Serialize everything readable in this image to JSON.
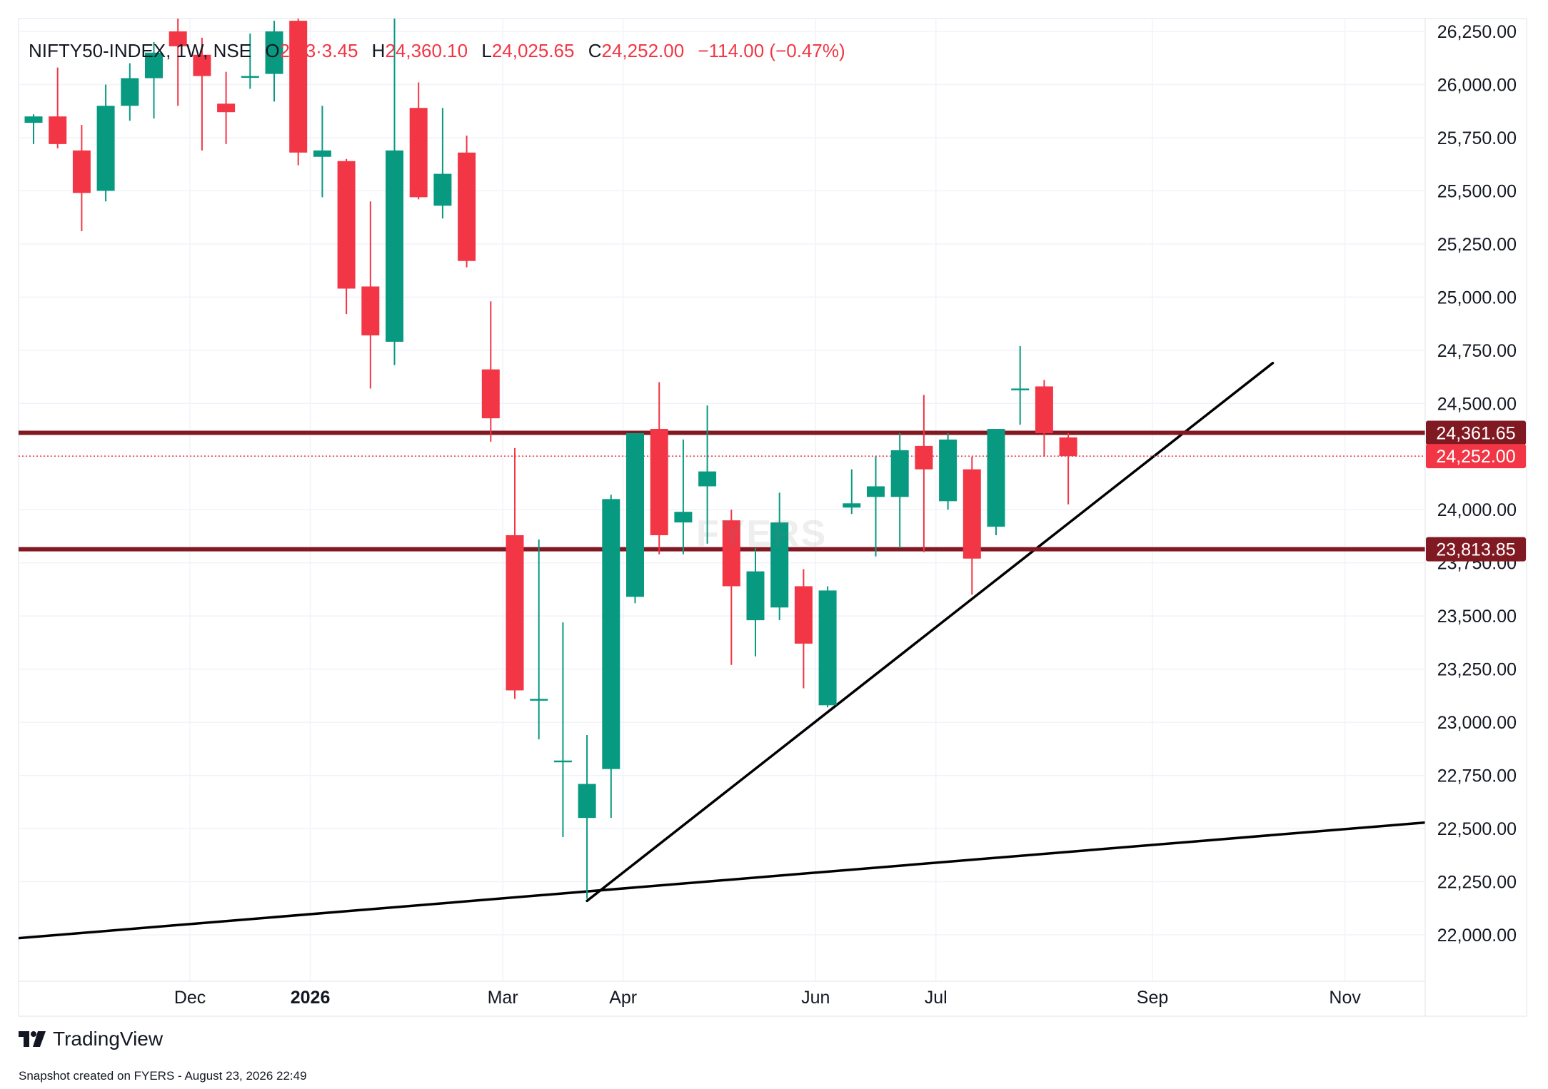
{
  "legend": {
    "symbol": "NIFTY50-INDEX, 1W, NSE",
    "open_label": "O",
    "open_value": "24,3·3.45",
    "high_label": "H",
    "high_value": "24,360.10",
    "low_label": "L",
    "low_value": "24,025.65",
    "close_label": "C",
    "close_value": "24,252.00",
    "change": "−114.00 (−0.47%)"
  },
  "watermark": "FYERS",
  "branding": {
    "name": "TradingView",
    "snapshot": "Snapshot created on FYERS - August 23, 2026 22:49"
  },
  "colors": {
    "up": "#089981",
    "down": "#f23645",
    "level": "#801922",
    "trendline": "#000000",
    "grid": "#f0f3fa"
  },
  "chart_data": {
    "type": "candlestick",
    "interval": "1W",
    "y_ticks": [
      22000,
      22250,
      22500,
      22750,
      23000,
      23250,
      23500,
      23750,
      24000,
      24250,
      24500,
      24750,
      25000,
      25250,
      25500,
      25750,
      26000,
      26250
    ],
    "y_tick_labels": [
      "22,000.00",
      "22,250.00",
      "22,500.00",
      "22,750.00",
      "23,000.00",
      "23,250.00",
      "23,500.00",
      "23,750.00",
      "24,000.00",
      "24,250.00",
      "24,500.00",
      "24,750.00",
      "25,000.00",
      "25,250.00",
      "25,500.00",
      "25,750.00",
      "26,000.00",
      "26,250.00"
    ],
    "x_ticks": [
      {
        "label": "Dec",
        "bar": 6.5,
        "bold": false
      },
      {
        "label": "2026",
        "bar": 11.5,
        "bold": true
      },
      {
        "label": "Mar",
        "bar": 19.5,
        "bold": false
      },
      {
        "label": "Apr",
        "bar": 24.5,
        "bold": false
      },
      {
        "label": "Jun",
        "bar": 32.5,
        "bold": false
      },
      {
        "label": "Jul",
        "bar": 37.5,
        "bold": false
      },
      {
        "label": "Sep",
        "bar": 46.5,
        "bold": false
      },
      {
        "label": "Nov",
        "bar": 54.5,
        "bold": false
      }
    ],
    "candles": [
      [
        25820,
        25860,
        25720,
        25850
      ],
      [
        25850,
        26080,
        25700,
        25720
      ],
      [
        25690,
        25810,
        25310,
        25490
      ],
      [
        25500,
        26000,
        25450,
        25900
      ],
      [
        25900,
        26100,
        25830,
        26030
      ],
      [
        26030,
        26200,
        25840,
        26150
      ],
      [
        26250,
        26350,
        25900,
        26180
      ],
      [
        26140,
        26220,
        25690,
        26040
      ],
      [
        25910,
        26060,
        25720,
        25870
      ],
      [
        26040,
        26240,
        25980,
        26040
      ],
      [
        26050,
        26300,
        25920,
        26250
      ],
      [
        26300,
        26400,
        25620,
        25680
      ],
      [
        25660,
        25900,
        25470,
        25690
      ],
      [
        25640,
        25650,
        24920,
        25040
      ],
      [
        25050,
        25450,
        24570,
        24820
      ],
      [
        24790,
        26400,
        24680,
        25690
      ],
      [
        25890,
        26010,
        25460,
        25470
      ],
      [
        25430,
        25890,
        25370,
        25580
      ],
      [
        25680,
        25760,
        25140,
        25170
      ],
      [
        24660,
        24980,
        24320,
        24430
      ],
      [
        23880,
        24290,
        23110,
        23150
      ],
      [
        23110,
        23860,
        22920,
        23110
      ],
      [
        22820,
        23470,
        22460,
        22820
      ],
      [
        22550,
        22940,
        22170,
        22710
      ],
      [
        22780,
        24070,
        22550,
        24050
      ],
      [
        23590,
        24360,
        23560,
        24360
      ],
      [
        24380,
        24600,
        23790,
        23880
      ],
      [
        23940,
        24330,
        23790,
        23990
      ],
      [
        24110,
        24490,
        23840,
        24180
      ],
      [
        23950,
        24000,
        23270,
        23640
      ],
      [
        23480,
        23820,
        23310,
        23710
      ],
      [
        23540,
        24080,
        23480,
        23940
      ],
      [
        23640,
        23720,
        23160,
        23370
      ],
      [
        23080,
        23640,
        23070,
        23620
      ],
      [
        24010,
        24190,
        23980,
        24030
      ],
      [
        24060,
        24250,
        23780,
        24110
      ],
      [
        24060,
        24360,
        23820,
        24280
      ],
      [
        24300,
        24540,
        23800,
        24190
      ],
      [
        24040,
        24360,
        24000,
        24330
      ],
      [
        24190,
        24250,
        23600,
        23770
      ],
      [
        23920,
        24380,
        23880,
        24380
      ],
      [
        24570,
        24770,
        24400,
        24570
      ],
      [
        24580,
        24610,
        24250,
        24360
      ],
      [
        24340,
        24360,
        24025,
        24252
      ]
    ],
    "levels": [
      {
        "value": 24361.65,
        "label": "24,361.65",
        "style": "solid"
      },
      {
        "value": 24252.0,
        "label": "24,252.00",
        "style": "dotted"
      },
      {
        "value": 23813.85,
        "label": "23,813.85",
        "style": "solid"
      }
    ],
    "trendlines": [
      {
        "from": {
          "bar": -1.1,
          "value": 21980
        },
        "to": {
          "bar": 58.0,
          "value": 22530
        }
      },
      {
        "from": {
          "bar": 23.0,
          "value": 22160
        },
        "to": {
          "bar": 51.5,
          "value": 24690
        }
      }
    ]
  }
}
